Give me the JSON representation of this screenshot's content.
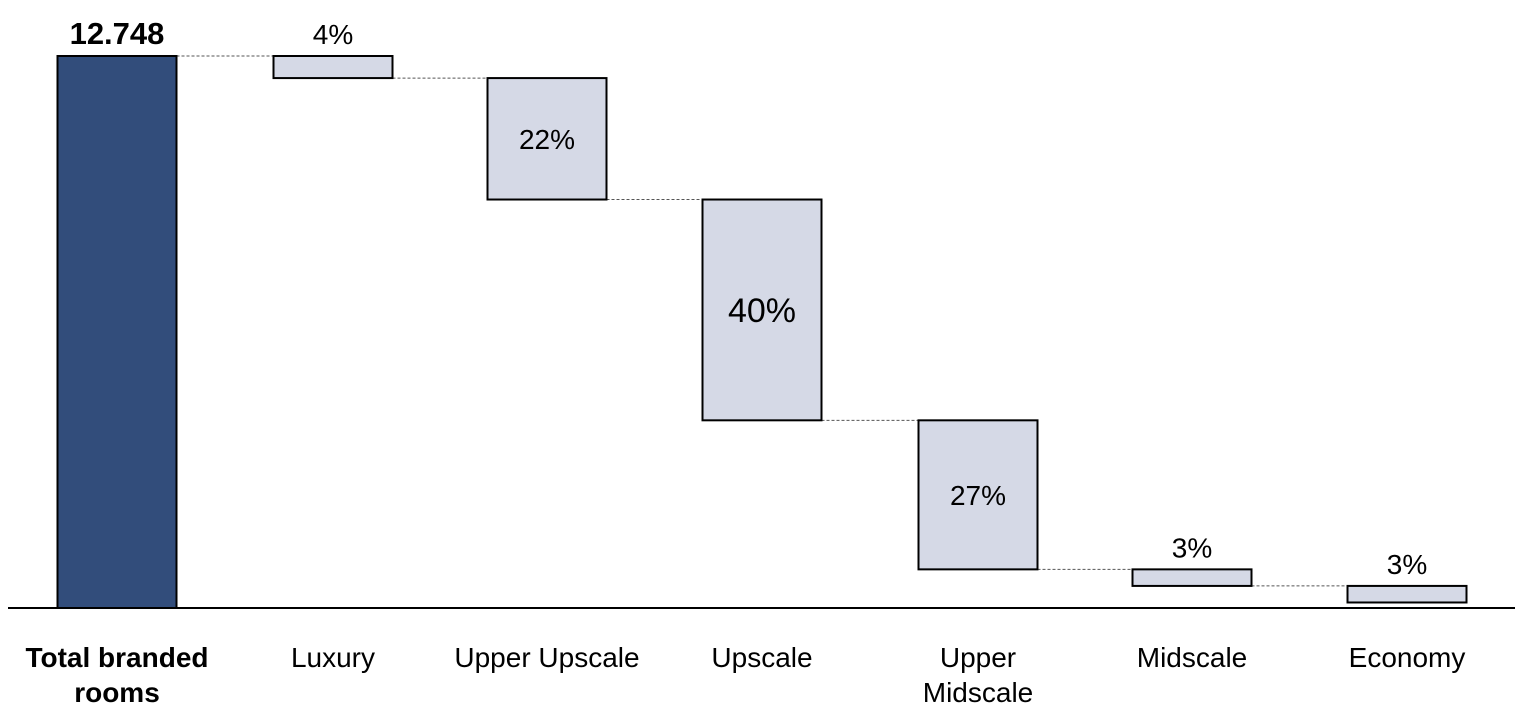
{
  "chart_data": {
    "type": "waterfall",
    "total": {
      "category_line1": "Total branded",
      "category_line2": "rooms",
      "label": "12.748",
      "share_pct": 100
    },
    "categories": [
      "Luxury",
      "Upper Upscale",
      "Upscale",
      "Upper Midscale",
      "Midscale",
      "Economy"
    ],
    "category_lines": [
      [
        "Luxury",
        ""
      ],
      [
        "Upper Upscale",
        ""
      ],
      [
        "Upscale",
        ""
      ],
      [
        "Upper",
        "Midscale"
      ],
      [
        "Midscale",
        ""
      ],
      [
        "Economy",
        ""
      ]
    ],
    "values_pct": [
      4,
      22,
      40,
      27,
      3,
      3
    ],
    "value_labels": [
      "4%",
      "22%",
      "40%",
      "27%",
      "3%",
      "3%"
    ],
    "label_position": [
      "above",
      "inside",
      "inside",
      "inside",
      "above",
      "above"
    ],
    "ylim": [
      0,
      100
    ],
    "axis": "none",
    "grid": false,
    "legend": "none",
    "colors": {
      "total_fill": "#324d7b",
      "step_fill": "#d5d9e6",
      "stroke": "#000000",
      "connector": "#555555"
    }
  }
}
